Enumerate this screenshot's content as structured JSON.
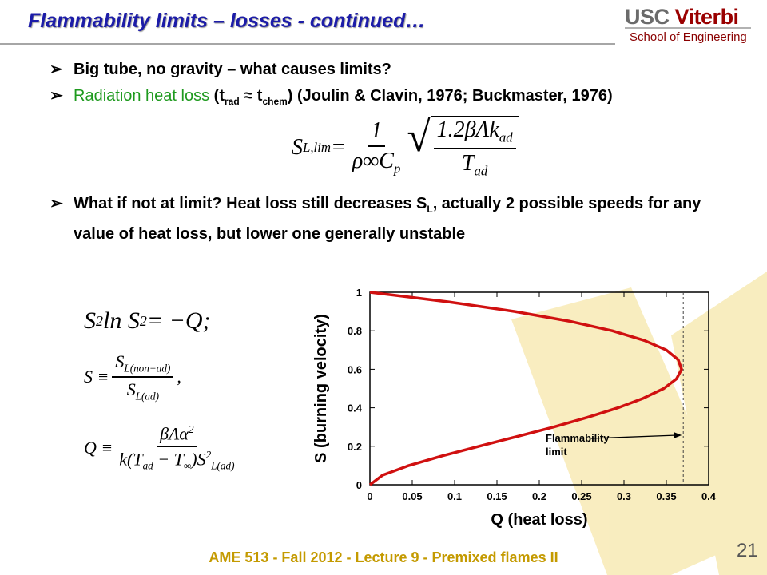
{
  "header": {
    "title": "Flammability limits – losses - continued…",
    "logo_usc": "USC",
    "logo_viterbi": "Viterbi",
    "logo_school": "School of Engineering"
  },
  "bullets": [
    [
      {
        "text": "Big tube, no gravity – what causes limits?"
      }
    ],
    [
      {
        "text": "Radiation heat loss",
        "color": "#1e9a1e",
        "weight": "normal"
      },
      {
        "text": " (t"
      },
      {
        "text": "rad",
        "sub": true
      },
      {
        "text": " ≈ t"
      },
      {
        "text": "chem",
        "sub": true
      },
      {
        "text": ") (Joulin & Clavin, 1976; Buckmaster, 1976)"
      }
    ],
    [
      {
        "text": "What if not at limit?  Heat loss still decreases S"
      },
      {
        "text": "L",
        "sub": true
      },
      {
        "text": ", actually 2 possible speeds for any value of heat loss, but lower one generally unstable"
      }
    ]
  ],
  "equation_limit": [
    {
      "text": "S"
    },
    {
      "text": "L,lim",
      "sub": true
    },
    {
      "text": " = "
    },
    {
      "frac": {
        "num": [
          {
            "text": "1"
          }
        ],
        "den": [
          {
            "text": "ρ∞C"
          },
          {
            "text": "p",
            "sub": true
          }
        ]
      }
    },
    {
      "sqrt": [
        {
          "frac": {
            "num": [
              {
                "text": "1.2βΛk"
              },
              {
                "text": "ad",
                "sub": true
              }
            ],
            "den": [
              {
                "text": "T"
              },
              {
                "text": "ad",
                "sub": true
              }
            ]
          }
        }
      ]
    }
  ],
  "equations_left": [
    [
      {
        "text": "S"
      },
      {
        "text": "2",
        "sup": true
      },
      {
        "text": " ln S"
      },
      {
        "text": "2",
        "sup": true
      },
      {
        "text": " = −Q;"
      }
    ],
    [
      {
        "text": "S ≡ "
      },
      {
        "frac": {
          "num": [
            {
              "text": "S"
            },
            {
              "text": "L(non−ad)",
              "sub": true
            }
          ],
          "den": [
            {
              "text": "S"
            },
            {
              "text": "L(ad)",
              "sub": true
            }
          ]
        }
      },
      {
        "text": ","
      }
    ],
    [
      {
        "text": "Q ≡ "
      },
      {
        "frac": {
          "num": [
            {
              "text": "βΛα"
            },
            {
              "text": "2",
              "sup": true
            }
          ],
          "den": [
            {
              "text": "k(T"
            },
            {
              "text": "ad",
              "sub": true
            },
            {
              "text": " − T"
            },
            {
              "text": "∞",
              "sub": true
            },
            {
              "text": ")S"
            },
            {
              "text": "2",
              "sup": true
            },
            {
              "text": "L(ad)",
              "sub": true
            }
          ]
        }
      }
    ]
  ],
  "chart_data": {
    "type": "line",
    "xlabel": "Q (heat loss)",
    "ylabel": "S (burning velocity)",
    "color": "#d01010",
    "x": [
      0,
      0.015,
      0.046,
      0.085,
      0.129,
      0.173,
      0.217,
      0.257,
      0.293,
      0.323,
      0.347,
      0.362,
      0.368,
      0.364,
      0.35,
      0.324,
      0.286,
      0.235,
      0.171,
      0.093,
      0
    ],
    "values": [
      0,
      0.05,
      0.1,
      0.15,
      0.2,
      0.25,
      0.3,
      0.35,
      0.4,
      0.45,
      0.5,
      0.55,
      0.6,
      0.65,
      0.7,
      0.75,
      0.8,
      0.85,
      0.9,
      0.95,
      1
    ],
    "xlim": [
      0,
      0.4
    ],
    "xticks": [
      0,
      0.05,
      0.1,
      0.15,
      0.2,
      0.25,
      0.3,
      0.35,
      0.4
    ],
    "ylim": [
      0,
      1
    ],
    "yticks": [
      0,
      0.2,
      0.4,
      0.6,
      0.8,
      1
    ],
    "annotations": [
      {
        "text": "Flammability limit",
        "x": 0.37
      }
    ]
  },
  "footer": {
    "text": "AME 513 - Fall 2012 - Lecture 9 - Premixed flames II",
    "page": "21"
  }
}
